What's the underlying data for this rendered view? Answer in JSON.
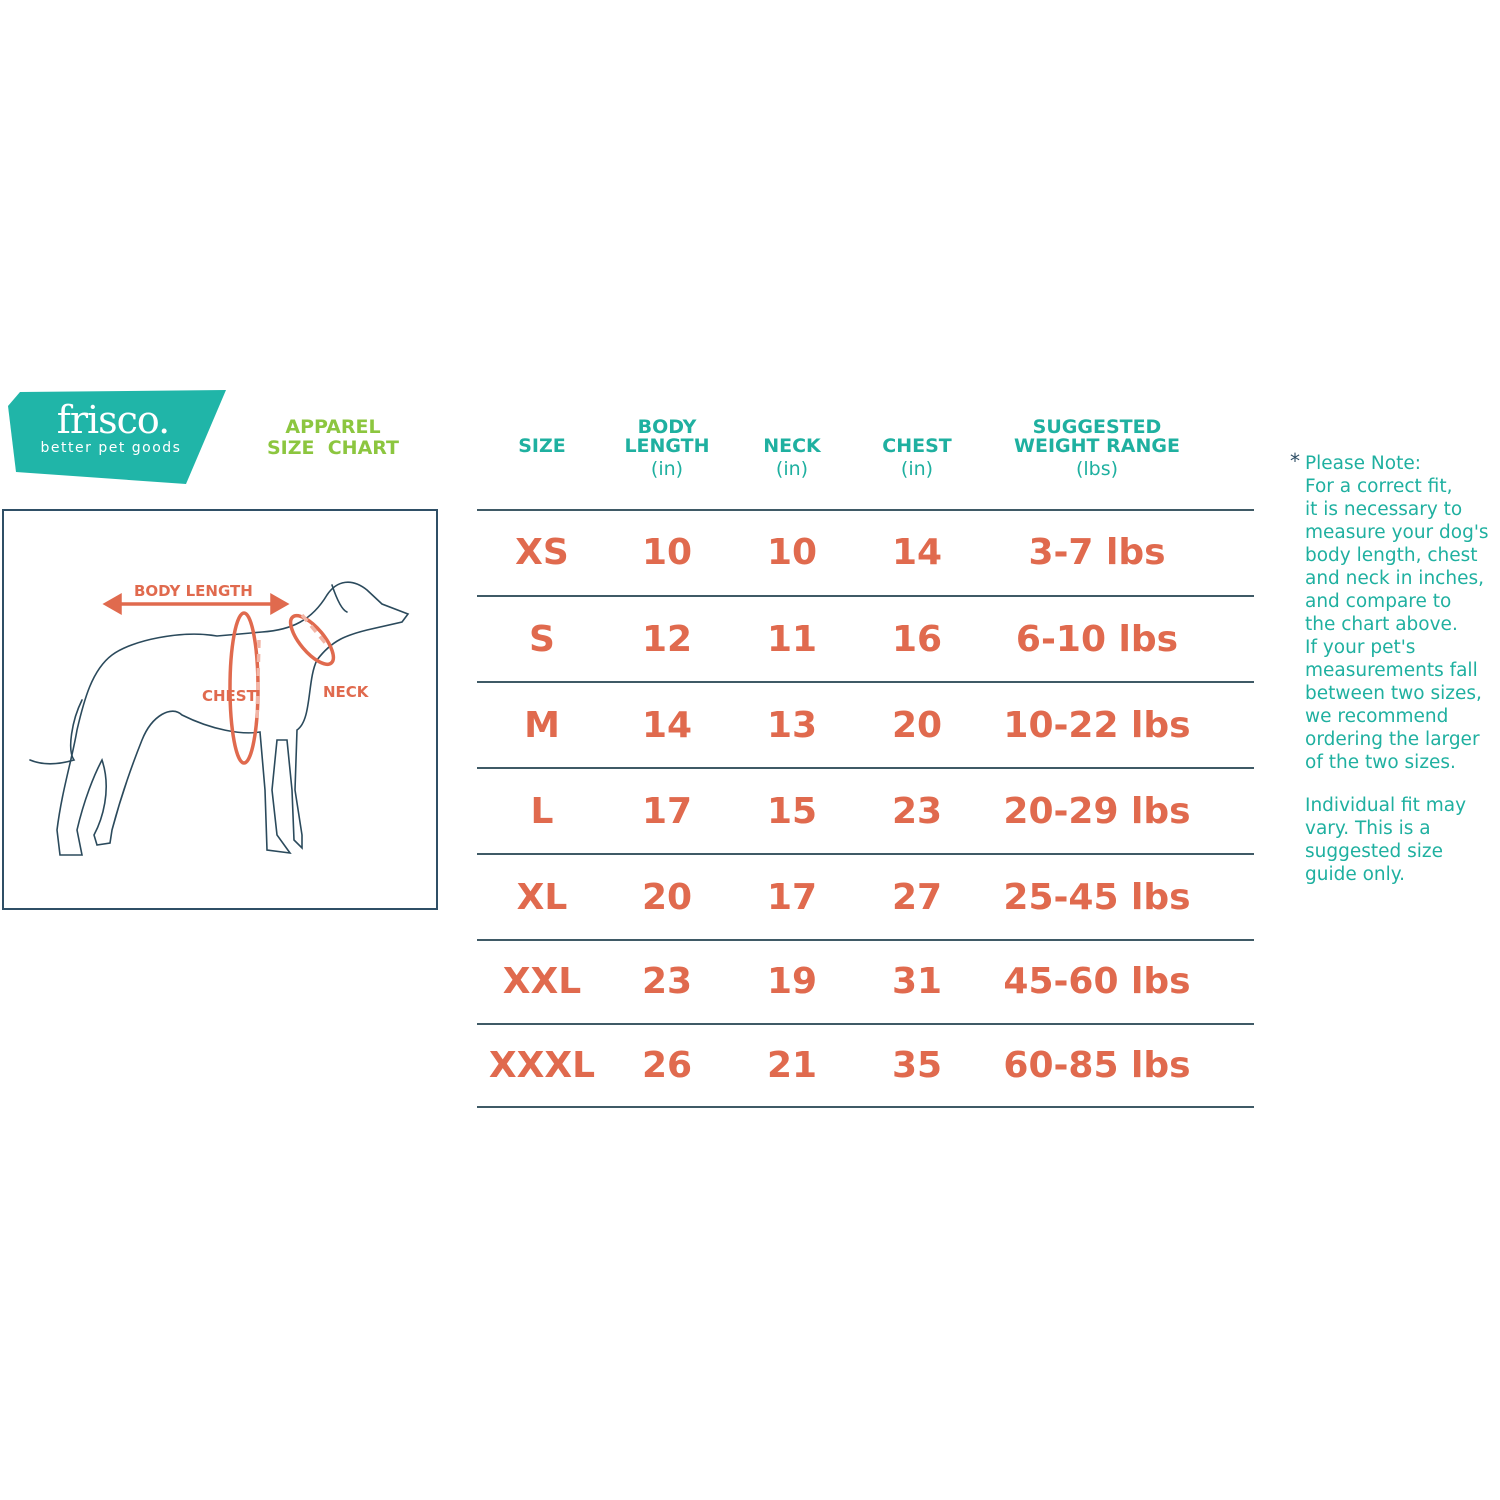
{
  "brand": {
    "name": "frisco.",
    "tagline": "better pet goods",
    "color": "#20b5a8"
  },
  "title": {
    "line1": "APPAREL",
    "line2": "SIZE  CHART"
  },
  "diagram": {
    "labels": {
      "body_length": "BODY LENGTH",
      "chest": "CHEST",
      "neck": "NECK"
    }
  },
  "table": {
    "headers": [
      {
        "line1": "",
        "line2": "SIZE",
        "unit": ""
      },
      {
        "line1": "BODY",
        "line2": "LENGTH",
        "unit": "(in)"
      },
      {
        "line1": "",
        "line2": "NECK",
        "unit": "(in)"
      },
      {
        "line1": "",
        "line2": "CHEST",
        "unit": "(in)"
      },
      {
        "line1": "SUGGESTED",
        "line2": "WEIGHT RANGE",
        "unit": "(lbs)"
      }
    ],
    "rows": [
      [
        "XS",
        "10",
        "10",
        "14",
        "3-7 lbs"
      ],
      [
        "S",
        "12",
        "11",
        "16",
        "6-10 lbs"
      ],
      [
        "M",
        "14",
        "13",
        "20",
        "10-22 lbs"
      ],
      [
        "L",
        "17",
        "15",
        "23",
        "20-29 lbs"
      ],
      [
        "XL",
        "20",
        "17",
        "27",
        "25-45 lbs"
      ],
      [
        "XXL",
        "23",
        "19",
        "31",
        "45-60 lbs"
      ],
      [
        "XXXL",
        "26",
        "21",
        "35",
        "60-85 lbs"
      ]
    ]
  },
  "note": {
    "asterisk": "*",
    "lines": [
      "Please Note:",
      "For a correct fit,",
      "it is necessary to",
      "measure your dog's",
      "body length, chest",
      "and neck in inches,",
      "and compare to",
      "the chart above.",
      "If your pet's",
      "measurements fall",
      "between two sizes,",
      "we recommend",
      "ordering the larger",
      "of the two sizes."
    ],
    "lines2": [
      "Individual fit may",
      "vary. This is a",
      "suggested size",
      "guide only."
    ]
  },
  "colors": {
    "accent_teal": "#1fb0a0",
    "values_orange": "#e06a4e",
    "title_green": "#8cc63f",
    "lines": "#3f5a66"
  }
}
